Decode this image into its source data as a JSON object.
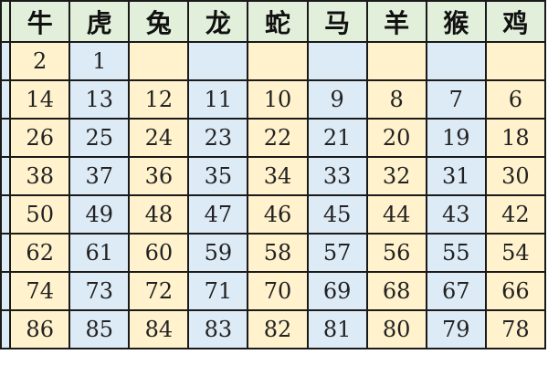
{
  "headers": [
    "",
    "牛",
    "虎",
    "兔",
    "龙",
    "蛇",
    "马",
    "羊",
    "猴",
    "鸡"
  ],
  "rows": [
    [
      "",
      "2",
      "1",
      "",
      "",
      "",
      "",
      "",
      "",
      ""
    ],
    [
      "",
      "14",
      "13",
      "12",
      "11",
      "10",
      "9",
      "8",
      "7",
      "6"
    ],
    [
      "",
      "26",
      "25",
      "24",
      "23",
      "22",
      "21",
      "20",
      "19",
      "18"
    ],
    [
      "",
      "38",
      "37",
      "36",
      "35",
      "34",
      "33",
      "32",
      "31",
      "30"
    ],
    [
      "",
      "50",
      "49",
      "48",
      "47",
      "46",
      "45",
      "44",
      "43",
      "42"
    ],
    [
      "",
      "62",
      "61",
      "60",
      "59",
      "58",
      "57",
      "56",
      "55",
      "54"
    ],
    [
      "",
      "74",
      "73",
      "72",
      "71",
      "70",
      "69",
      "68",
      "67",
      "66"
    ],
    [
      "",
      "86",
      "85",
      "84",
      "83",
      "82",
      "81",
      "80",
      "79",
      "78"
    ]
  ],
  "colors": {
    "header": "#e2efda",
    "cream": "#fff2cc",
    "blue": "#ddebf7",
    "border": "#1a1a1a"
  }
}
